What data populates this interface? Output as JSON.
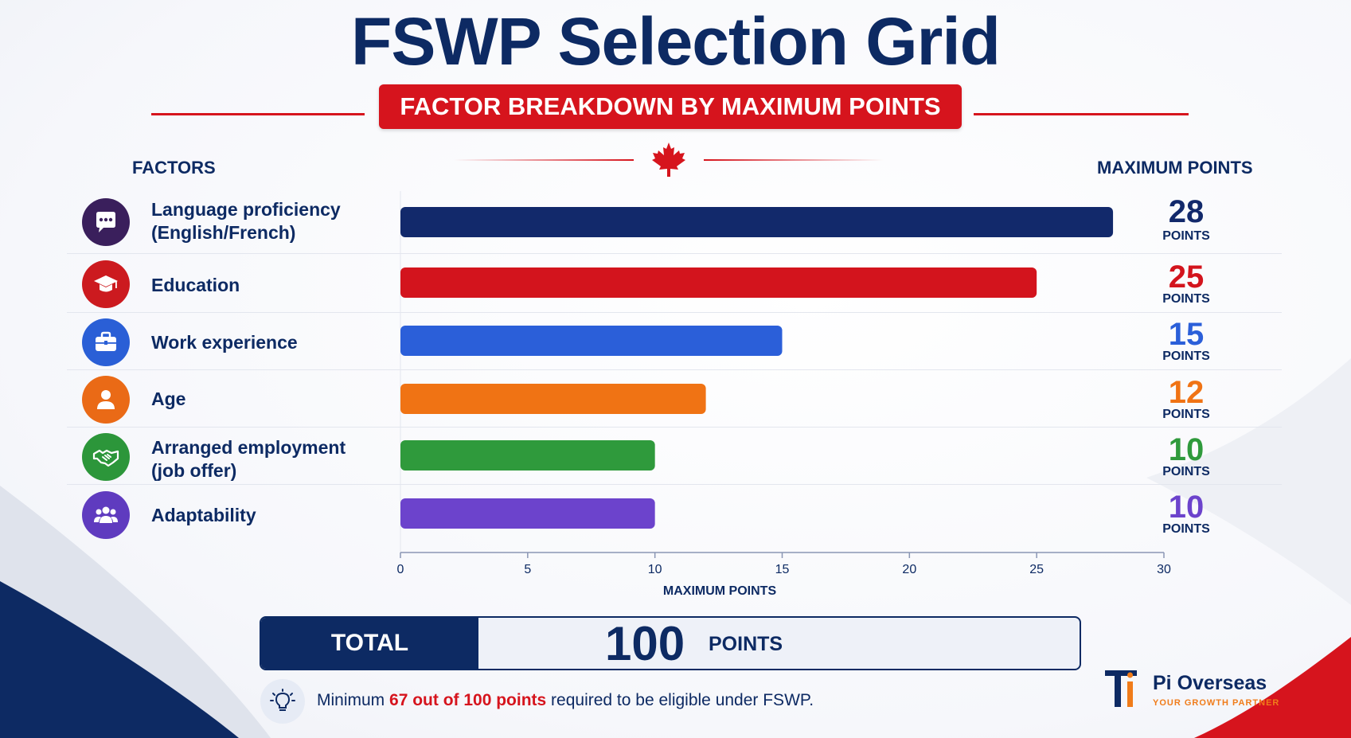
{
  "title": "FSWP Selection Grid",
  "subtitle": "FACTOR BREAKDOWN BY MAXIMUM POINTS",
  "factors_header": "FACTORS",
  "points_header": "MAXIMUM POINTS",
  "factors": [
    {
      "label_lines": [
        "Language proficiency",
        "(English/French)"
      ],
      "icon": "speech-bubble-icon",
      "color": "#12296b",
      "icon_bg": "#3a1f5c"
    },
    {
      "label_lines": [
        "Education"
      ],
      "icon": "graduation-cap-icon",
      "color": "#d3141d",
      "icon_bg": "#cc1a1f"
    },
    {
      "label_lines": [
        "Work experience"
      ],
      "icon": "briefcase-icon",
      "color": "#2b5fd9",
      "icon_bg": "#2a5fd6"
    },
    {
      "label_lines": [
        "Age"
      ],
      "icon": "person-icon",
      "color": "#f07314",
      "icon_bg": "#ea6a16"
    },
    {
      "label_lines": [
        "Arranged employment",
        "(job offer)"
      ],
      "icon": "handshake-icon",
      "color": "#2f9a3c",
      "icon_bg": "#2c963a"
    },
    {
      "label_lines": [
        "Adaptability"
      ],
      "icon": "people-group-icon",
      "color": "#6c43cc",
      "icon_bg": "#5f3bbf"
    }
  ],
  "points_unit": "POINTS",
  "chart_data": {
    "type": "bar",
    "orientation": "horizontal",
    "categories": [
      "Language proficiency (English/French)",
      "Education",
      "Work experience",
      "Age",
      "Arranged employment (job offer)",
      "Adaptability"
    ],
    "values": [
      28,
      25,
      15,
      12,
      10,
      10
    ],
    "value_labels": [
      "28",
      "25",
      "15",
      "12",
      "10",
      "10"
    ],
    "xlabel": "MAXIMUM POINTS",
    "xlim": [
      0,
      30
    ],
    "xticks": [
      "0",
      "5",
      "10",
      "15",
      "20",
      "25",
      "30"
    ]
  },
  "total": {
    "label": "TOTAL",
    "value": "100",
    "unit": "POINTS"
  },
  "note": {
    "prefix": "Minimum ",
    "highlight": "67 out of 100 points",
    "suffix": " required to be eligible under FSWP."
  },
  "brand": {
    "name": "Pi Overseas",
    "tagline": "YOUR GROWTH PARTNER"
  }
}
